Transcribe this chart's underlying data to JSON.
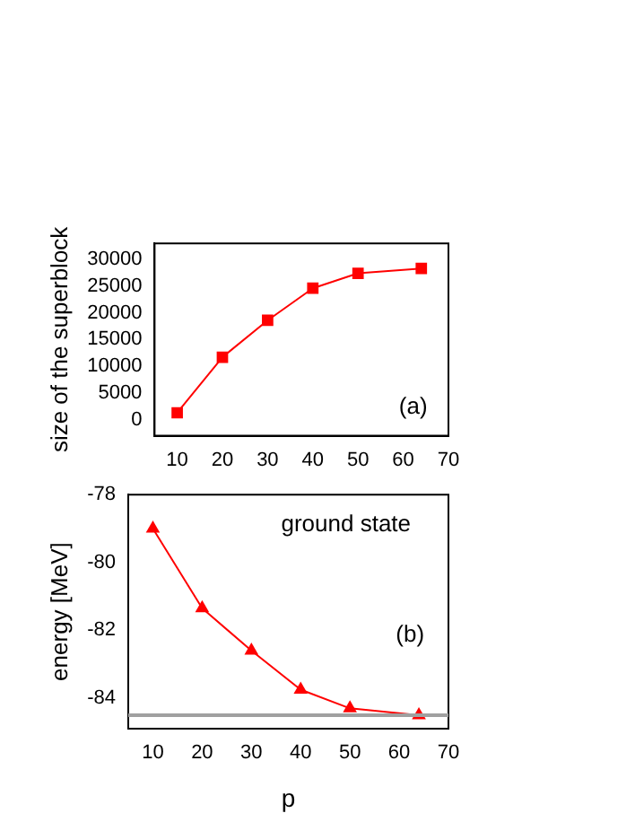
{
  "chart_data": [
    {
      "type": "line",
      "ylabel": "size of the superblock",
      "x": [
        10,
        20,
        30,
        40,
        50,
        64
      ],
      "xlim": [
        5,
        70
      ],
      "xticks": [
        10,
        20,
        30,
        40,
        50,
        60,
        70
      ],
      "ylim": [
        -3000,
        33000
      ],
      "yticks": [
        0,
        5000,
        10000,
        15000,
        20000,
        25000,
        30000
      ],
      "series": [
        {
          "color": "#ff0000",
          "values": [
            1300,
            11700,
            18600,
            24600,
            27400,
            28300
          ]
        }
      ],
      "marker": "square",
      "grid": false,
      "legend": false,
      "annotations": [
        "(a)"
      ]
    },
    {
      "type": "line",
      "xlabel": "p",
      "ylabel": "energy [MeV]",
      "x": [
        10,
        20,
        30,
        40,
        50,
        64
      ],
      "xlim": [
        5,
        70
      ],
      "xticks": [
        10,
        20,
        30,
        40,
        50,
        60,
        70
      ],
      "ylim": [
        -84.9,
        -78
      ],
      "yticks": [
        -84,
        -82,
        -80,
        -78
      ],
      "series": [
        {
          "color": "#ff0000",
          "values": [
            -79.0,
            -81.35,
            -82.6,
            -83.75,
            -84.3,
            -84.5
          ]
        }
      ],
      "marker": "triangle",
      "grid": false,
      "legend": false,
      "annotations": [
        "ground state",
        "(b)"
      ],
      "ref_lines": [
        {
          "axis": "y",
          "value": -84.5,
          "color": "#a0a0a0"
        }
      ]
    }
  ]
}
